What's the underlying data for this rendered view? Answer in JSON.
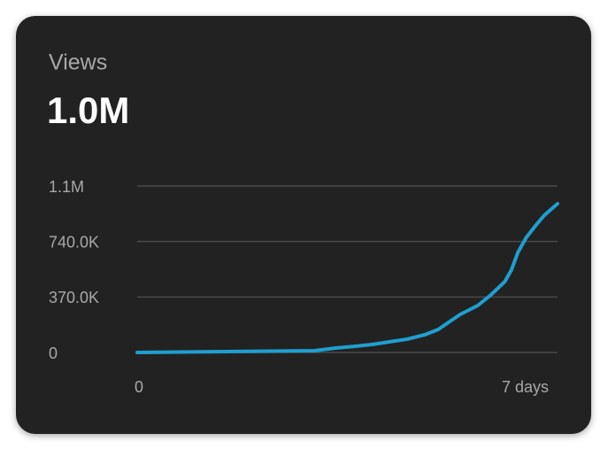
{
  "chart_data": {
    "type": "line",
    "title": "Views",
    "subtitle": "1.0M",
    "x": [
      0,
      1.47,
      2.95,
      3.32,
      3.61,
      3.91,
      4.2,
      4.5,
      4.79,
      5.01,
      5.23,
      5.38,
      5.67,
      5.89,
      6.12,
      6.23,
      6.34,
      6.48,
      6.63,
      6.78,
      6.93,
      7.0
    ],
    "values": [
      0,
      6000,
      12000,
      30000,
      41000,
      53000,
      71000,
      89000,
      118000,
      153000,
      213000,
      254000,
      313000,
      384000,
      472000,
      549000,
      667000,
      767000,
      844000,
      915000,
      968000,
      992000
    ],
    "color": "#1f9fcf",
    "xlim": [
      0,
      7
    ],
    "xticks": [
      0,
      {
        "value": 7,
        "label": "7 days"
      }
    ],
    "ylim": [
      0,
      1110000
    ],
    "yticks": [
      0,
      {
        "value": 370000,
        "label": "370.0K"
      },
      {
        "value": 740000,
        "label": "740.0K"
      },
      {
        "value": 1110000,
        "label": "1.1M"
      }
    ],
    "grid": true
  }
}
